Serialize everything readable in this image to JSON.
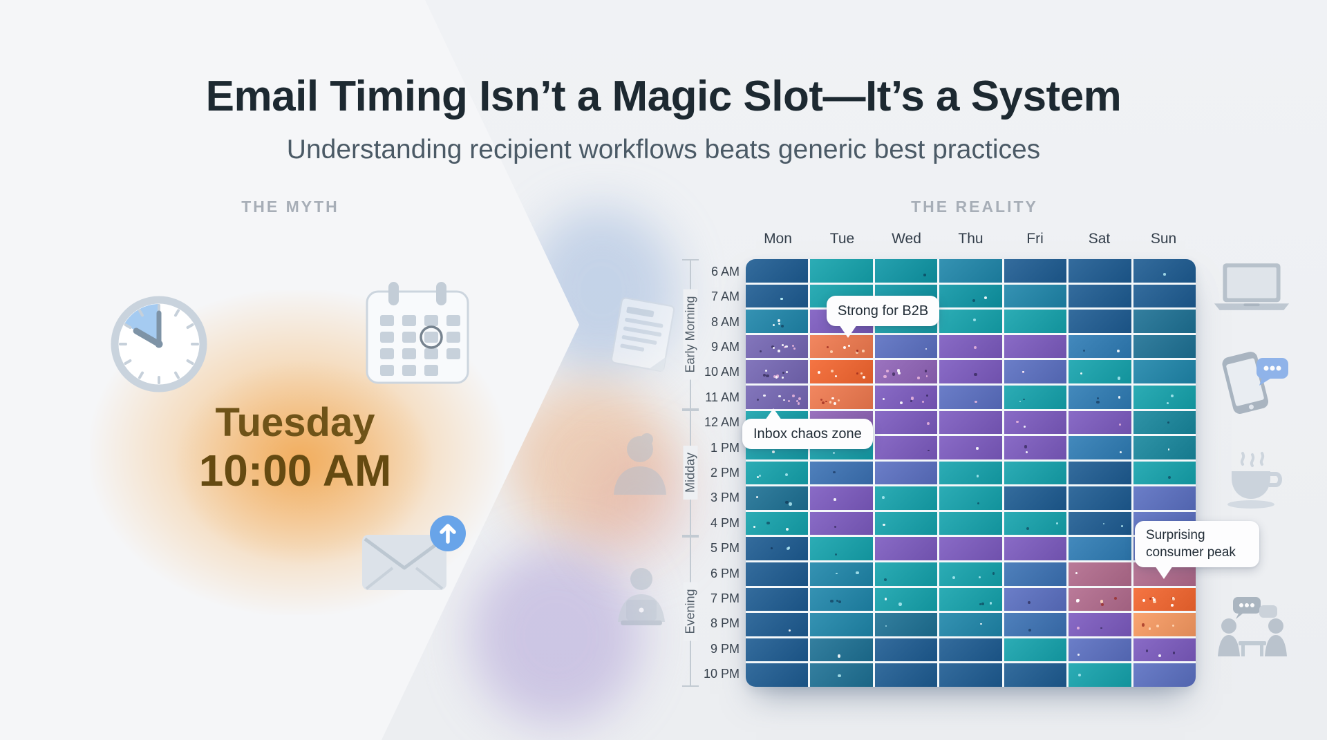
{
  "header": {
    "title": "Email Timing Isn’t a Magic Slot—It’s a System",
    "subtitle": "Understanding recipient workflows beats generic best practices"
  },
  "myth": {
    "section_label": "THE MYTH",
    "day": "Tuesday",
    "time": "10:00 AM"
  },
  "reality": {
    "section_label": "THE REALITY"
  },
  "chart_data": {
    "type": "heatmap",
    "columns": [
      "Mon",
      "Tue",
      "Wed",
      "Thu",
      "Fri",
      "Sat",
      "Sun"
    ],
    "rows": [
      "6 AM",
      "7 AM",
      "8 AM",
      "9 AM",
      "10 AM",
      "11 AM",
      "12 AM",
      "1 PM",
      "2 PM",
      "3 PM",
      "4 PM",
      "5 PM",
      "6 PM",
      "7 PM",
      "8 PM",
      "9 PM",
      "10 PM"
    ],
    "row_groups": [
      {
        "label": "Early Morning",
        "from": 0,
        "to": 5
      },
      {
        "label": "Midday",
        "from": 6,
        "to": 10
      },
      {
        "label": "Evening",
        "from": 11,
        "to": 16
      }
    ],
    "palette": {
      "N": "#1d5b92",
      "T": "#14a3ad",
      "TD": "#0d96a6",
      "TB": "#1e86aa",
      "DB": "#1d7094",
      "DT": "#17879d",
      "S": "#3b72b4",
      "B": "#2e7cb5",
      "I": "#5a6fc2",
      "P": "#7c5ac0",
      "PM": "#7567b4",
      "PP": "#9063b8",
      "R": "#b26b8d",
      "O": "#f0794e",
      "OD": "#f4652e",
      "OL": "#f89a61"
    },
    "grid": [
      [
        "N",
        "T",
        "TD",
        "TB",
        "N",
        "N",
        "N"
      ],
      [
        "N",
        "T",
        "TD",
        "TD",
        "TB",
        "N",
        "N"
      ],
      [
        "TB",
        "P",
        "T",
        "T",
        "T",
        "N",
        "DB"
      ],
      [
        "PM",
        "O",
        "I",
        "P",
        "P",
        "B",
        "DB"
      ],
      [
        "PM",
        "OD",
        "PP",
        "P",
        "I",
        "T",
        "TB"
      ],
      [
        "PM",
        "O",
        "P",
        "I",
        "T",
        "B",
        "T"
      ],
      [
        "T",
        "PP",
        "P",
        "P",
        "P",
        "P",
        "DT"
      ],
      [
        "T",
        "T",
        "P",
        "P",
        "P",
        "B",
        "DT"
      ],
      [
        "T",
        "S",
        "I",
        "T",
        "T",
        "N",
        "T"
      ],
      [
        "DB",
        "P",
        "T",
        "T",
        "N",
        "N",
        "I"
      ],
      [
        "T",
        "P",
        "T",
        "T",
        "T",
        "N",
        "I"
      ],
      [
        "N",
        "T",
        "P",
        "P",
        "P",
        "B",
        "I"
      ],
      [
        "N",
        "TB",
        "T",
        "T",
        "S",
        "R",
        "R"
      ],
      [
        "N",
        "TB",
        "T",
        "T",
        "I",
        "R",
        "OD"
      ],
      [
        "N",
        "TB",
        "DB",
        "TB",
        "S",
        "P",
        "OL"
      ],
      [
        "N",
        "DB",
        "N",
        "N",
        "T",
        "I",
        "P"
      ],
      [
        "N",
        "DB",
        "N",
        "N",
        "N",
        "T",
        "I"
      ]
    ],
    "speckles": [
      [
        0,
        0,
        1,
        0,
        0,
        0,
        1
      ],
      [
        2,
        0,
        0,
        2,
        0,
        0,
        0
      ],
      [
        4,
        0,
        0,
        1,
        0,
        0,
        0
      ],
      [
        9,
        8,
        1,
        1,
        0,
        2,
        0
      ],
      [
        9,
        6,
        8,
        1,
        2,
        2,
        0
      ],
      [
        9,
        7,
        6,
        1,
        2,
        3,
        2
      ],
      [
        1,
        4,
        1,
        0,
        2,
        1,
        1
      ],
      [
        2,
        1,
        1,
        1,
        2,
        1,
        1
      ],
      [
        3,
        1,
        0,
        1,
        0,
        0,
        1
      ],
      [
        3,
        1,
        1,
        1,
        0,
        0,
        0
      ],
      [
        3,
        1,
        1,
        0,
        2,
        2,
        0
      ],
      [
        3,
        1,
        0,
        0,
        0,
        0,
        0
      ],
      [
        0,
        2,
        1,
        3,
        0,
        1,
        0
      ],
      [
        0,
        3,
        2,
        3,
        1,
        5,
        9
      ],
      [
        1,
        0,
        1,
        1,
        1,
        2,
        4
      ],
      [
        0,
        1,
        0,
        0,
        0,
        1,
        3
      ],
      [
        0,
        1,
        0,
        0,
        0,
        1,
        0
      ]
    ],
    "annotations": [
      {
        "text": "Strong for B2B",
        "target": "Tue 9 AM",
        "tail": "down"
      },
      {
        "text": "Inbox chaos zone",
        "target": "Mon 11 AM",
        "tail": "up"
      },
      {
        "text": "Surprising consumer peak",
        "target": "Sun 6 PM",
        "tail": "down"
      }
    ],
    "value_encoding": "color",
    "legend": "none"
  },
  "icons": {
    "myth": [
      "clock-icon",
      "calendar-icon",
      "envelope-send-icon"
    ],
    "reality_left": [
      "document-icon",
      "person-icon",
      "person-laptop-icon"
    ],
    "reality_right": [
      "laptop-icon",
      "phone-chat-icon",
      "coffee-icon",
      "meeting-icon"
    ]
  },
  "colors": {
    "highlight_glow": "#f2a85c",
    "myth_text": "#6f5318",
    "callout_bg": "#fdfdfe",
    "page_bg": "#edeff2"
  }
}
